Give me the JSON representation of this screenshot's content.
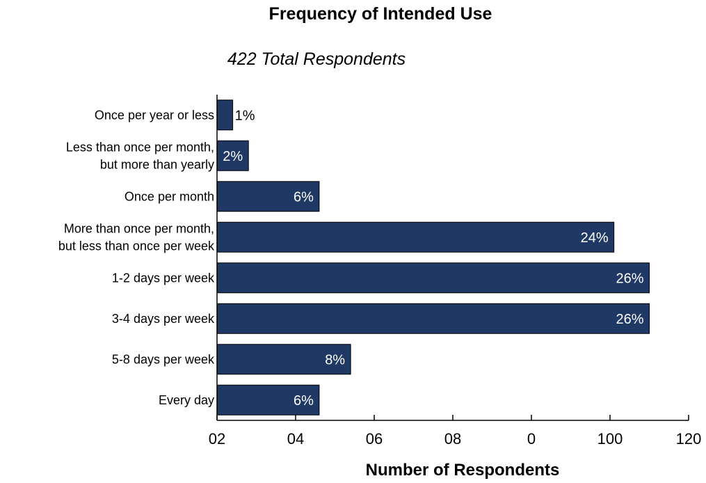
{
  "chart_data": {
    "type": "bar",
    "orientation": "horizontal",
    "title": "Frequency of Intended Use",
    "subtitle": "422 Total Respondents",
    "xlabel": "Number of Respondents",
    "ylabel": "",
    "xlim": [
      0,
      120
    ],
    "grid": false,
    "legend": "none",
    "categories": [
      [
        "Once per year or less"
      ],
      [
        "Less than once per month,",
        "but more than yearly"
      ],
      [
        "Once per month"
      ],
      [
        "More than once per month,",
        "but less than once per week"
      ],
      [
        "1-2 days per week"
      ],
      [
        "3-4 days per week"
      ],
      [
        "5-8 days per week"
      ],
      [
        "Every day"
      ]
    ],
    "values": [
      4,
      8,
      26,
      101,
      110,
      110,
      34,
      26
    ],
    "data_labels": [
      "1%",
      "2%",
      "6%",
      "24%",
      "26%",
      "26%",
      "8%",
      "6%"
    ],
    "x_ticks": [
      "02",
      "04",
      "06",
      "08",
      "0",
      "100",
      "120"
    ],
    "bar_color": "#1f3864",
    "label_color_inside": "#ffffff",
    "label_color_outside": "#000000"
  }
}
